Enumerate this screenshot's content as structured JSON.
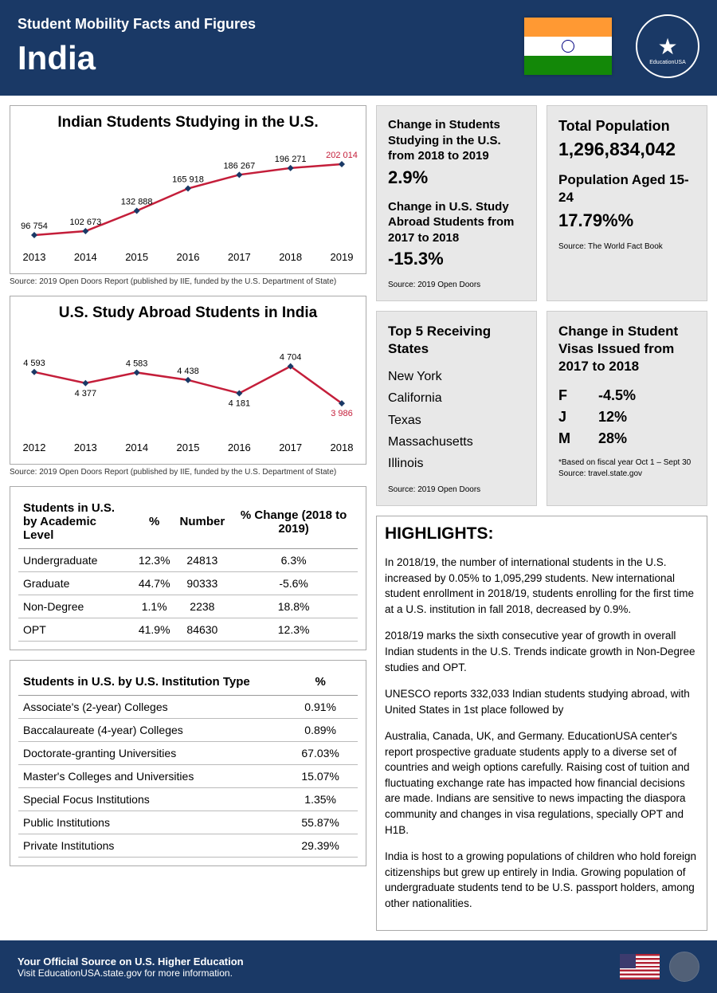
{
  "header": {
    "subtitle": "Student Mobility Facts and Figures",
    "country": "India"
  },
  "chart1": {
    "title": "Indian Students Studying in the U.S.",
    "type": "line",
    "years": [
      "2013",
      "2014",
      "2015",
      "2016",
      "2017",
      "2018",
      "2019"
    ],
    "values": [
      96754,
      102673,
      132888,
      165918,
      186267,
      196271,
      202014
    ],
    "labels": [
      "96 754",
      "102 673",
      "132 888",
      "165 918",
      "186 267",
      "196 271",
      "202 014"
    ],
    "line_color": "#c41e3a",
    "marker_color": "#1a3966",
    "last_label_color": "#c41e3a",
    "source": "Source: 2019 Open Doors Report (published by IIE, funded by the U.S. Department of State)"
  },
  "chart2": {
    "title": "U.S. Study Abroad Students in India",
    "type": "line",
    "years": [
      "2012",
      "2013",
      "2014",
      "2015",
      "2016",
      "2017",
      "2018"
    ],
    "values": [
      4593,
      4377,
      4583,
      4438,
      4181,
      4704,
      3986
    ],
    "labels": [
      "4 593",
      "4 377",
      "4 583",
      "4 438",
      "4 181",
      "4 704",
      "3 986"
    ],
    "line_color": "#c41e3a",
    "marker_color": "#1a3966",
    "last_label_color": "#c41e3a",
    "source": "Source: 2019 Open Doors Report (published by IIE, funded by the U.S. Department of State)"
  },
  "changes": {
    "s1_label": "Change in Students Studying in the U.S. from 2018 to 2019",
    "s1_value": "2.9%",
    "s2_label": "Change in U.S. Study Abroad Students from 2017 to 2018",
    "s2_value": "-15.3%",
    "source": "Source: 2019 Open Doors"
  },
  "population": {
    "t1_label": "Total Population",
    "t1_value": "1,296,834,042",
    "t2_label": "Population Aged 15-24",
    "t2_value": "17.79%%",
    "source": "Source: The World Fact Book"
  },
  "states": {
    "title": "Top 5 Receiving States",
    "items": [
      "New York",
      "California",
      "Texas",
      "Massachusetts",
      "Illinois"
    ],
    "source": "Source: 2019 Open Doors"
  },
  "visas": {
    "title": "Change in Student Visas Issued from 2017 to 2018",
    "rows": [
      {
        "type": "F",
        "value": "-4.5%"
      },
      {
        "type": "J",
        "value": "12%"
      },
      {
        "type": "M",
        "value": "28%"
      }
    ],
    "note": "*Based on fiscal year Oct 1 – Sept 30\nSource: travel.state.gov"
  },
  "table1": {
    "header": [
      "Students in U.S. by Academic Level",
      "%",
      "Number",
      "% Change (2018 to 2019)"
    ],
    "rows": [
      [
        "Undergraduate",
        "12.3%",
        "24813",
        "6.3%"
      ],
      [
        "Graduate",
        "44.7%",
        "90333",
        "-5.6%"
      ],
      [
        "Non-Degree",
        "1.1%",
        "2238",
        "18.8%"
      ],
      [
        "OPT",
        "41.9%",
        "84630",
        "12.3%"
      ]
    ]
  },
  "table2": {
    "header": [
      "Students in U.S. by U.S. Institution Type",
      "%"
    ],
    "rows": [
      [
        "Associate's (2-year) Colleges",
        "0.91%"
      ],
      [
        "Baccalaureate (4-year) Colleges",
        "0.89%"
      ],
      [
        "Doctorate-granting Universities",
        "67.03%"
      ],
      [
        "Master's Colleges and Universities",
        "15.07%"
      ],
      [
        "Special Focus Institutions",
        "1.35%"
      ],
      [
        "Public Institutions",
        "55.87%"
      ],
      [
        "Private Institutions",
        "29.39%"
      ]
    ]
  },
  "highlights": {
    "title": "HIGHLIGHTS:",
    "paras": [
      "In 2018/19, the number of international students in the U.S. increased by 0.05% to 1,095,299 students. New international student enrollment  in 2018/19, students enrolling for the first time at a U.S. institution in fall 2018, decreased by 0.9%.",
      "2018/19 marks the sixth consecutive year of growth in overall Indian students in the U.S. Trends indicate growth in Non-Degree studies and OPT.",
      "UNESCO reports 332,033 Indian students studying abroad, with United States in 1st place followed by",
      "Australia, Canada, UK, and Germany. EducationUSA center's report prospective graduate students apply to a diverse set of countries and weigh options carefully. Raising cost of tuition and fluctuating exchange rate has impacted how financial decisions are made. Indians are sensitive to news impacting the diaspora community and changes in visa regulations, specially OPT and H1B.",
      "India is host to a growing populations of children who hold foreign citizenships but grew up entirely in India. Growing population of undergraduate students tend to be U.S. passport holders, among other nationalities."
    ]
  },
  "footer": {
    "line1": "Your Official Source on U.S. Higher Education",
    "line2": "Visit EducationUSA.state.gov for more information."
  }
}
